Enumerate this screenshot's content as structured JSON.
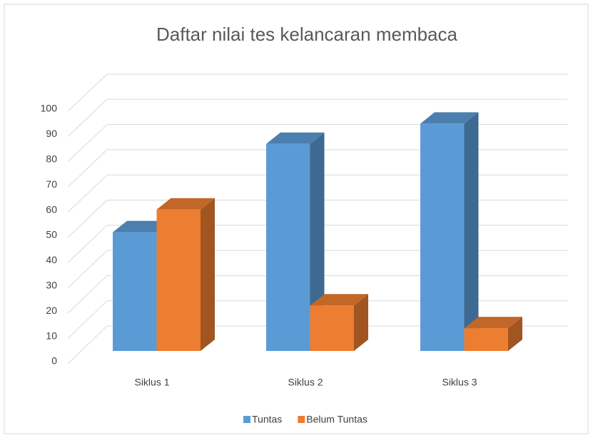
{
  "chart_data": {
    "type": "bar3d",
    "title": "Daftar nilai tes kelancaran membaca",
    "categories": [
      "Siklus 1",
      "Siklus 2",
      "Siklus 3"
    ],
    "series": [
      {
        "name": "Tuntas",
        "color": "#5b9bd5",
        "values": [
          47,
          82,
          90
        ]
      },
      {
        "name": "Belum Tuntas",
        "color": "#ed7d31",
        "values": [
          56,
          18,
          9
        ]
      }
    ],
    "ylim": [
      0,
      100
    ],
    "yticks": [
      0,
      10,
      20,
      30,
      40,
      50,
      60,
      70,
      80,
      90,
      100
    ],
    "grid": true,
    "legend": "bottom"
  }
}
